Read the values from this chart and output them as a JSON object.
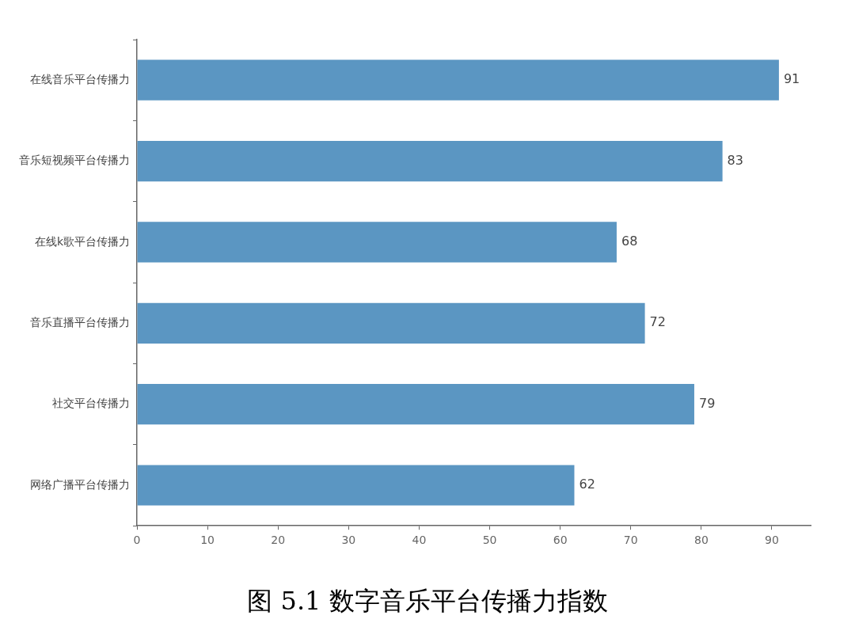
{
  "chart_data": {
    "type": "bar",
    "orientation": "horizontal",
    "title": "图 5.1 数字音乐平台传播力指数",
    "categories": [
      "在线音乐平台传播力",
      "音乐短视频平台传播力",
      "在线k歌平台传播力",
      "音乐直播平台传播力",
      "社交平台传播力",
      "网络广播平台传播力"
    ],
    "values": [
      91,
      83,
      68,
      72,
      79,
      62
    ],
    "color": "#5b96c2",
    "xlim": [
      0,
      95.5
    ],
    "xticks": [
      0,
      10,
      20,
      30,
      40,
      50,
      60,
      70,
      80,
      90
    ],
    "data_labels": true,
    "legend": false
  }
}
